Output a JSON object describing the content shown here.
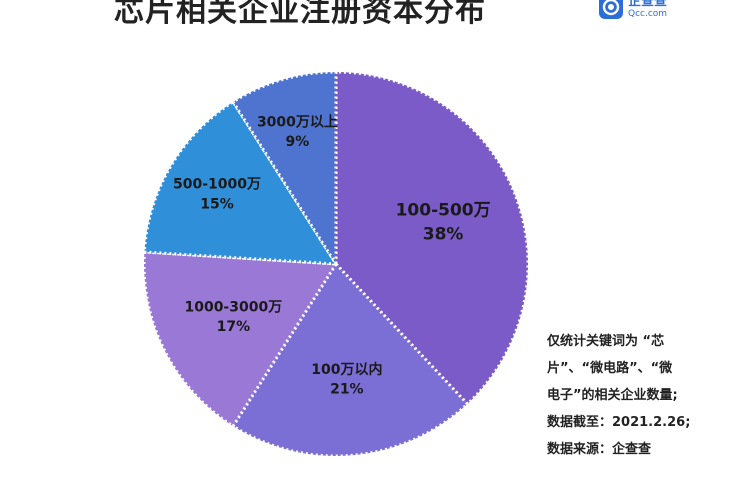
{
  "title": "芯片相关企业注册资本分布",
  "brand": {
    "name": "企查查",
    "url": "Qcc.com",
    "icon": "qcc-logo-icon",
    "color": "#2b6fd6"
  },
  "chart_data": {
    "type": "pie",
    "categories": [
      "100-500万",
      "100万以内",
      "1000-3000万",
      "500-1000万",
      "3000万以上"
    ],
    "values": [
      38,
      21,
      17,
      15,
      9
    ],
    "labels": [
      "38%",
      "21%",
      "17%",
      "15%",
      "9%"
    ],
    "colors": [
      "#7a5bc7",
      "#7b6fd6",
      "#9a78d6",
      "#2f8fd9",
      "#4f74cf"
    ]
  },
  "note": {
    "lines": [
      "仅统计关键词为 “芯",
      "片”、“微电路”、“微",
      "电子”的相关企业数量;",
      "数据截至：2021.2.26;",
      "数据来源：企查查"
    ]
  }
}
